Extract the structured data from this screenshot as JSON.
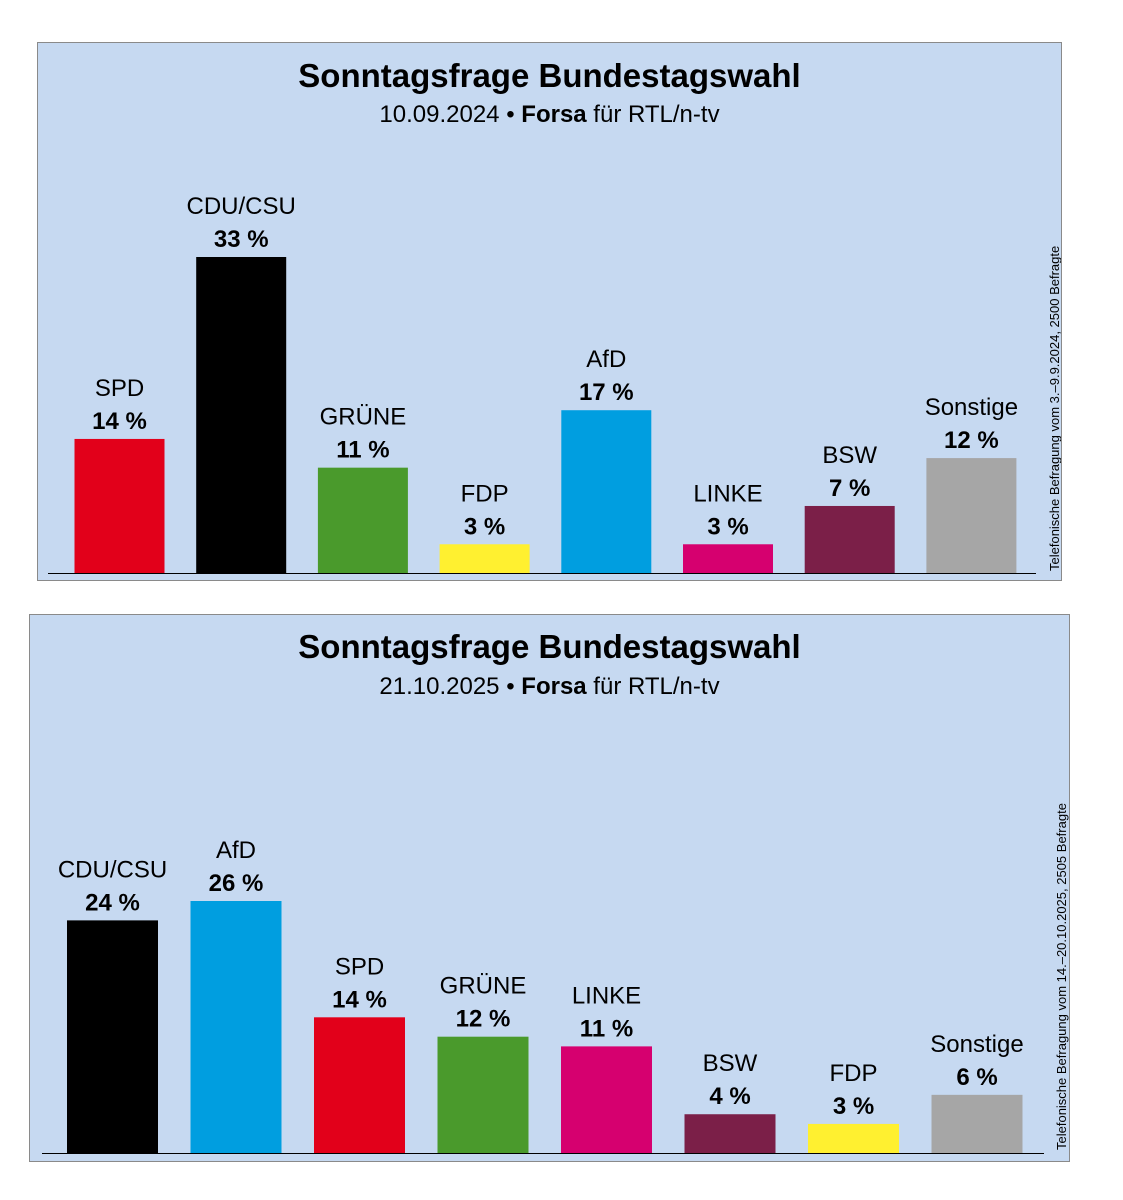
{
  "chart_data": [
    {
      "type": "bar",
      "title": "Sonntagsfrage Bundestagswahl",
      "subtitle": {
        "date": "10.09.2024",
        "bullet": " • ",
        "institute": "Forsa",
        "client": " für RTL/n-tv"
      },
      "side_note": "Telefonische Befragung vom 3.–9.9.2024, 2500 Befragte",
      "categories": [
        "SPD",
        "CDU/CSU",
        "GRÜNE",
        "FDP",
        "AfD",
        "LINKE",
        "BSW",
        "Sonstige"
      ],
      "values": [
        14,
        33,
        11,
        3,
        17,
        3,
        7,
        12
      ],
      "labels": [
        "14 %",
        "33 %",
        "11 %",
        "3 %",
        "17 %",
        "3 %",
        "7 %",
        "12 %"
      ],
      "colors": [
        "#e2001a",
        "#000000",
        "#4a9a2c",
        "#fff030",
        "#009ee0",
        "#d6006f",
        "#7b1f48",
        "#a6a6a6"
      ],
      "ylim": [
        0,
        33
      ],
      "grid": false,
      "legend": "none"
    },
    {
      "type": "bar",
      "title": "Sonntagsfrage Bundestagswahl",
      "subtitle": {
        "date": "21.10.2025",
        "bullet": " • ",
        "institute": "Forsa",
        "client": " für RTL/n-tv"
      },
      "side_note": "Telefonische Befragung vom 14.–20.10.2025, 2505 Befragte",
      "categories": [
        "CDU/CSU",
        "AfD",
        "SPD",
        "GRÜNE",
        "LINKE",
        "BSW",
        "FDP",
        "Sonstige"
      ],
      "values": [
        24,
        26,
        14,
        12,
        11,
        4,
        3,
        6
      ],
      "labels": [
        "24 %",
        "26 %",
        "14 %",
        "12 %",
        "11 %",
        "4 %",
        "3 %",
        "6 %"
      ],
      "colors": [
        "#000000",
        "#009ee0",
        "#e2001a",
        "#4a9a2c",
        "#d6006f",
        "#7b1f48",
        "#fff030",
        "#a6a6a6"
      ],
      "ylim": [
        0,
        26
      ],
      "grid": false,
      "legend": "none"
    }
  ]
}
